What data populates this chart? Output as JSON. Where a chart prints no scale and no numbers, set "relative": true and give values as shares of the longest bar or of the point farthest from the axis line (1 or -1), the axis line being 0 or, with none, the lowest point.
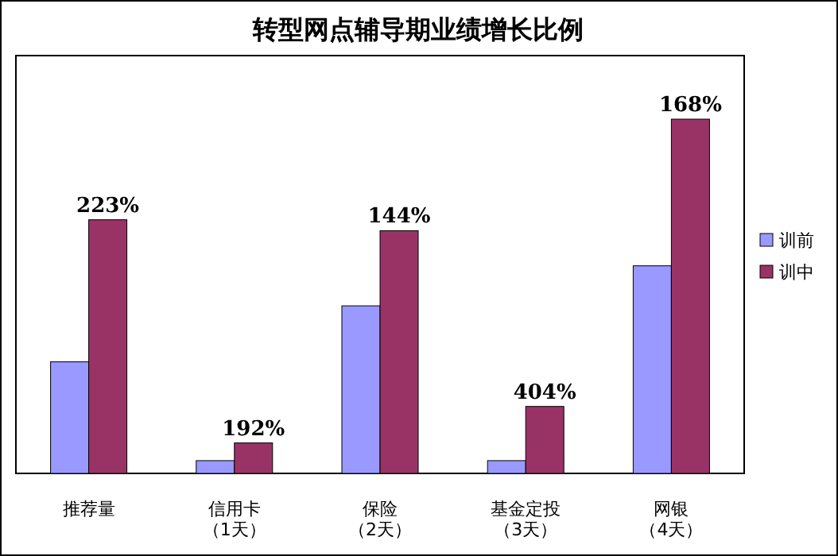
{
  "chart_data": {
    "type": "bar",
    "title": "转型网点辅导期业绩增长比例",
    "relative": true,
    "legend": "right",
    "categories": [
      "推荐量",
      "信用卡（1天）",
      "保险（2天）",
      "基金定投（3天）",
      "网银（4天）"
    ],
    "series": [
      {
        "name": "训前",
        "color": "#9999ff",
        "values": [
          0.315,
          0.036,
          0.473,
          0.036,
          0.586
        ]
      },
      {
        "name": "训中",
        "color": "#993366",
        "values": [
          0.716,
          0.086,
          0.685,
          0.189,
          1
        ]
      }
    ],
    "annotations": [
      {
        "text": "223%",
        "x": "推荐量",
        "y": 0.716
      },
      {
        "text": "192%",
        "x": "信用卡（1天）",
        "y": 0.086
      },
      {
        "text": "144%",
        "x": "保险（2天）",
        "y": 0.685
      },
      {
        "text": "404%",
        "x": "基金定投（3天）",
        "y": 0.189
      },
      {
        "text": "168%",
        "x": "网银（4天）",
        "y": 1
      }
    ]
  }
}
